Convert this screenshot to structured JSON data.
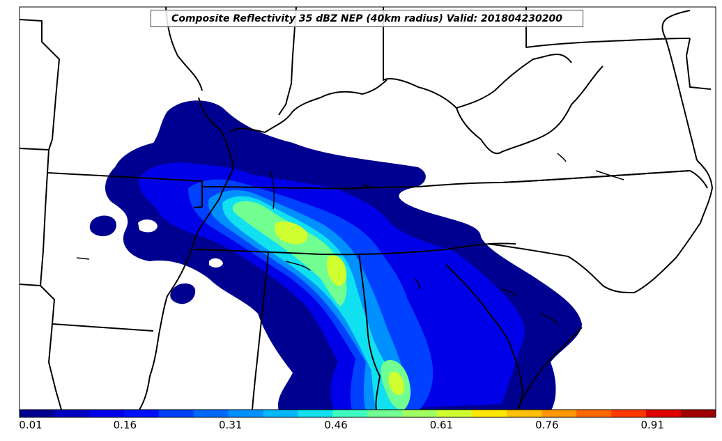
{
  "title": "Composite Reflectivity 35 dBZ NEP (40km radius) Valid: 201804230200",
  "colorbar": {
    "tick_labels": [
      "0.01",
      "0.16",
      "0.31",
      "0.46",
      "0.61",
      "0.76",
      "0.91"
    ],
    "tick_values": [
      0.01,
      0.16,
      0.31,
      0.46,
      0.61,
      0.76,
      0.91
    ],
    "range": [
      0.01,
      1.0
    ],
    "levels": 20,
    "colors": [
      "#000090",
      "#0000c0",
      "#0000e8",
      "#0010ff",
      "#0040ff",
      "#0068ff",
      "#0090ff",
      "#00b8ff",
      "#10e0f0",
      "#40ffc0",
      "#70ff90",
      "#a0ff60",
      "#d0ff30",
      "#ffe800",
      "#ffc000",
      "#ff9800",
      "#ff6800",
      "#ff3800",
      "#e00000",
      "#a00000"
    ]
  },
  "probability_field": {
    "variable": "Composite Reflectivity 35 dBZ neighborhood ensemble probability",
    "neighborhood_radius_km": 40,
    "valid_time": "201804230200"
  }
}
